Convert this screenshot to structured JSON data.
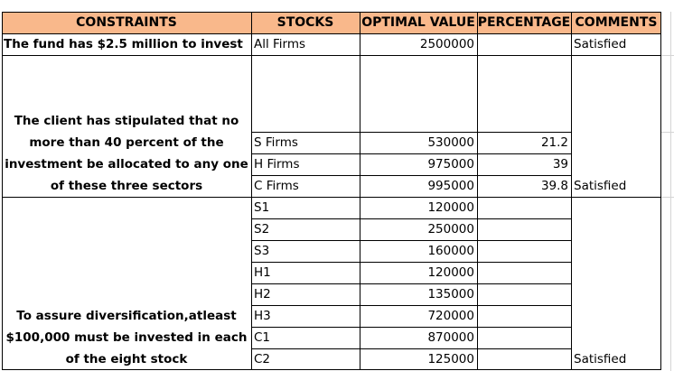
{
  "headers": {
    "constraints": "CONSTRAINTS",
    "stocks": "STOCKS",
    "optimal_value": "OPTIMAL VALUE",
    "percentage": "PERCENTAGE",
    "comments": "COMMENTS"
  },
  "header_color": "#f9b88b",
  "block1": {
    "constraint": "The fund has $2.5 million to invest",
    "stock": "All Firms",
    "value": "2500000",
    "comment": "Satisfied"
  },
  "block2": {
    "constraint_lines": [
      "The client has stipulated that no",
      "more than 40 percent of the",
      "investment be allocated to any one",
      "of these three sectors"
    ],
    "rows": [
      {
        "stock": "S Firms",
        "value": "530000",
        "percentage": "21.2",
        "comment": ""
      },
      {
        "stock": "H Firms",
        "value": "975000",
        "percentage": "39",
        "comment": ""
      },
      {
        "stock": "C Firms",
        "value": "995000",
        "percentage": "39.8",
        "comment": "Satisfied"
      }
    ]
  },
  "block3": {
    "constraint_lines": [
      "To assure diversification,atleast",
      "$100,000 must be invested in each",
      "of the eight stock"
    ],
    "rows": [
      {
        "stock": "S1",
        "value": "120000",
        "comment": ""
      },
      {
        "stock": "S2",
        "value": "250000",
        "comment": ""
      },
      {
        "stock": "S3",
        "value": "160000",
        "comment": ""
      },
      {
        "stock": "H1",
        "value": "120000",
        "comment": ""
      },
      {
        "stock": "H2",
        "value": "135000",
        "comment": ""
      },
      {
        "stock": "H3",
        "value": "720000",
        "comment": ""
      },
      {
        "stock": "C1",
        "value": "870000",
        "comment": ""
      },
      {
        "stock": "C2",
        "value": "125000",
        "comment": "Satisfied"
      }
    ]
  }
}
